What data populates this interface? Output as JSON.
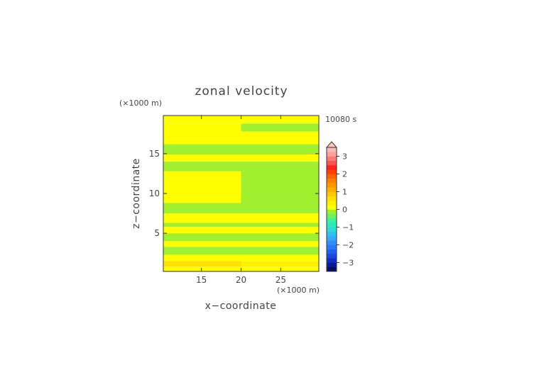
{
  "chart_data": {
    "type": "heatmap",
    "title": "zonal velocity",
    "time_label": "10080 s",
    "xlabel": "x−coordinate",
    "ylabel": "z−coordinate",
    "x_unit": "(×1000 m)",
    "y_unit": "(×1000 m)",
    "xlim": [
      10.2,
      29.8
    ],
    "ylim": [
      0.2,
      19.8
    ],
    "x_ticks": [
      15,
      20,
      25
    ],
    "y_ticks": [
      5,
      10,
      15
    ],
    "x_tick_labels": [
      "15",
      "20",
      "25"
    ],
    "y_tick_labels": [
      "5",
      "10",
      "15"
    ],
    "colorbar": {
      "levels": [
        -3.5,
        -3.25,
        -3,
        -2.75,
        -2.5,
        -2.25,
        -2,
        -1.75,
        -1.5,
        -1.25,
        -1,
        -0.75,
        -0.5,
        -0.25,
        0,
        0.25,
        0.5,
        0.75,
        1,
        1.25,
        1.5,
        1.75,
        2,
        2.25,
        2.5,
        2.75,
        3,
        3.25,
        3.5
      ],
      "colors": [
        "#081060",
        "#0a1c90",
        "#1030c0",
        "#1848e0",
        "#2060f0",
        "#2878f8",
        "#3090f8",
        "#38a8f8",
        "#30c0f0",
        "#30d8e0",
        "#30e8c0",
        "#40f0a0",
        "#70f060",
        "#a0f030",
        "#ffff00",
        "#fff000",
        "#ffe000",
        "#ffc800",
        "#ffb000",
        "#ff9800",
        "#ff8000",
        "#ff6000",
        "#ff4000",
        "#ff2020",
        "#ff5050",
        "#ff7878",
        "#ffa0a0",
        "#ffb8b8"
      ],
      "tick_values": [
        -3,
        -2,
        -1,
        0,
        1,
        2,
        3
      ],
      "tick_labels": [
        "−3",
        "−2",
        "−1",
        "0",
        "1",
        "2",
        "3"
      ],
      "extend": "max"
    },
    "bands": [
      {
        "z": [
          0.2,
          0.8
        ],
        "left": 0.0,
        "right": 0.0
      },
      {
        "z": [
          0.8,
          1.5
        ],
        "left": 0.55,
        "right": 0.3
      },
      {
        "z": [
          1.5,
          2.3
        ],
        "left": 0.1,
        "right": 0.1
      },
      {
        "z": [
          2.3,
          3.3
        ],
        "left": -0.1,
        "right": -0.1
      },
      {
        "z": [
          3.3,
          4.0
        ],
        "left": 0.1,
        "right": 0.1
      },
      {
        "z": [
          4.0,
          5.0
        ],
        "left": -0.1,
        "right": -0.1
      },
      {
        "z": [
          5.0,
          5.8
        ],
        "left": 0.1,
        "right": 0.1
      },
      {
        "z": [
          5.8,
          6.3
        ],
        "left": -0.1,
        "right": -0.1
      },
      {
        "z": [
          6.3,
          7.5
        ],
        "left": 0.1,
        "right": 0.1
      },
      {
        "z": [
          7.5,
          8.8
        ],
        "left": -0.1,
        "right": -0.1
      },
      {
        "z": [
          8.8,
          12.8
        ],
        "left": 0.1,
        "right": -0.1
      },
      {
        "z": [
          12.8,
          14.0
        ],
        "left": -0.1,
        "right": -0.1
      },
      {
        "z": [
          14.0,
          14.9
        ],
        "left": 0.1,
        "right": 0.1
      },
      {
        "z": [
          14.9,
          16.2
        ],
        "left": -0.1,
        "right": -0.1
      },
      {
        "z": [
          16.2,
          17.8
        ],
        "left": 0.1,
        "right": 0.1
      },
      {
        "z": [
          17.8,
          18.8
        ],
        "left": 0.1,
        "right": -0.1
      },
      {
        "z": [
          18.8,
          19.8
        ],
        "left": 0.1,
        "right": 0.1
      }
    ],
    "grid": false
  }
}
